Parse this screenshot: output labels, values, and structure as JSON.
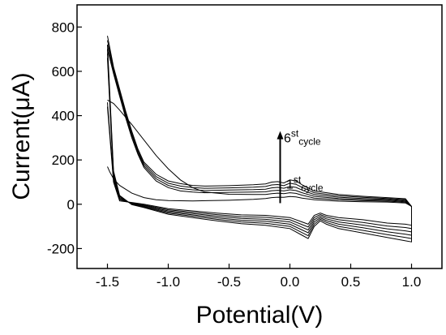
{
  "chart_data": {
    "type": "line",
    "xlabel": "Potential(V)",
    "ylabel": "Current(μA)",
    "xlim": [
      -1.75,
      1.25
    ],
    "ylim": [
      -290,
      900
    ],
    "xticks": [
      -1.5,
      -1.0,
      -0.5,
      0.0,
      0.5,
      1.0
    ],
    "xtick_labels": [
      "-1.5",
      "-1.0",
      "-0.5",
      "0.0",
      "0.5",
      "1.0"
    ],
    "yticks": [
      -200,
      0,
      200,
      400,
      600,
      800
    ],
    "ytick_labels": [
      "-200",
      "0",
      "200",
      "400",
      "600",
      "800"
    ],
    "grid": false,
    "legend": "none",
    "annotations": {
      "top": {
        "base": "6",
        "sup": "st",
        "sub": "cycle",
        "x": -0.05,
        "y": 280
      },
      "bottom": {
        "base": "1",
        "sup": "st",
        "sub": "cycle",
        "x": -0.03,
        "y": 70
      },
      "arrow": {
        "x": -0.08,
        "y_start": 5,
        "y_end": 330
      }
    },
    "series": [
      {
        "forward": [
          [
            -1.5,
            760
          ],
          [
            -1.45,
            620
          ],
          [
            -1.4,
            520
          ],
          [
            -1.35,
            420
          ],
          [
            -1.3,
            330
          ],
          [
            -1.25,
            250
          ],
          [
            -1.2,
            190
          ],
          [
            -1.1,
            135
          ],
          [
            -1.0,
            105
          ],
          [
            -0.9,
            93
          ],
          [
            -0.8,
            85
          ],
          [
            -0.7,
            82
          ],
          [
            -0.5,
            84
          ],
          [
            -0.3,
            88
          ],
          [
            -0.2,
            92
          ],
          [
            -0.15,
            100
          ],
          [
            -0.1,
            102
          ],
          [
            -0.05,
            96
          ],
          [
            0.0,
            110
          ],
          [
            0.05,
            105
          ],
          [
            0.1,
            88
          ],
          [
            0.2,
            60
          ],
          [
            0.4,
            44
          ],
          [
            0.6,
            36
          ],
          [
            0.8,
            30
          ],
          [
            0.95,
            25
          ],
          [
            1.0,
            -10
          ]
        ],
        "reverse": [
          [
            1.0,
            -170
          ],
          [
            0.95,
            -165
          ],
          [
            0.8,
            -150
          ],
          [
            0.6,
            -130
          ],
          [
            0.4,
            -110
          ],
          [
            0.3,
            -90
          ],
          [
            0.25,
            -75
          ],
          [
            0.2,
            -100
          ],
          [
            0.15,
            -155
          ],
          [
            0.1,
            -140
          ],
          [
            0.0,
            -110
          ],
          [
            -0.2,
            -95
          ],
          [
            -0.4,
            -88
          ],
          [
            -0.6,
            -75
          ],
          [
            -0.8,
            -60
          ],
          [
            -1.0,
            -45
          ],
          [
            -1.1,
            -30
          ],
          [
            -1.2,
            -15
          ],
          [
            -1.3,
            -2
          ],
          [
            -1.4,
            40
          ],
          [
            -1.45,
            150
          ],
          [
            -1.5,
            720
          ]
        ]
      },
      {
        "forward": [
          [
            -1.5,
            740
          ],
          [
            -1.45,
            610
          ],
          [
            -1.4,
            510
          ],
          [
            -1.35,
            410
          ],
          [
            -1.3,
            320
          ],
          [
            -1.25,
            242
          ],
          [
            -1.2,
            182
          ],
          [
            -1.1,
            125
          ],
          [
            -1.0,
            95
          ],
          [
            -0.9,
            82
          ],
          [
            -0.8,
            75
          ],
          [
            -0.7,
            72
          ],
          [
            -0.5,
            74
          ],
          [
            -0.3,
            77
          ],
          [
            -0.2,
            80
          ],
          [
            -0.15,
            87
          ],
          [
            -0.1,
            89
          ],
          [
            -0.05,
            84
          ],
          [
            0.0,
            95
          ],
          [
            0.05,
            90
          ],
          [
            0.1,
            76
          ],
          [
            0.2,
            52
          ],
          [
            0.4,
            38
          ],
          [
            0.6,
            31
          ],
          [
            0.8,
            26
          ],
          [
            0.95,
            21
          ],
          [
            1.0,
            -10
          ]
        ],
        "reverse": [
          [
            1.0,
            -155
          ],
          [
            0.95,
            -150
          ],
          [
            0.8,
            -137
          ],
          [
            0.6,
            -118
          ],
          [
            0.4,
            -100
          ],
          [
            0.3,
            -82
          ],
          [
            0.25,
            -68
          ],
          [
            0.2,
            -90
          ],
          [
            0.15,
            -142
          ],
          [
            0.1,
            -128
          ],
          [
            0.0,
            -100
          ],
          [
            -0.2,
            -86
          ],
          [
            -0.4,
            -80
          ],
          [
            -0.6,
            -68
          ],
          [
            -0.8,
            -54
          ],
          [
            -1.0,
            -40
          ],
          [
            -1.1,
            -26
          ],
          [
            -1.2,
            -12
          ],
          [
            -1.3,
            0
          ],
          [
            -1.4,
            35
          ],
          [
            -1.45,
            140
          ],
          [
            -1.5,
            700
          ]
        ]
      },
      {
        "forward": [
          [
            -1.5,
            720
          ],
          [
            -1.45,
            600
          ],
          [
            -1.4,
            498
          ],
          [
            -1.35,
            400
          ],
          [
            -1.3,
            310
          ],
          [
            -1.25,
            234
          ],
          [
            -1.2,
            174
          ],
          [
            -1.1,
            115
          ],
          [
            -1.0,
            85
          ],
          [
            -0.9,
            71
          ],
          [
            -0.8,
            65
          ],
          [
            -0.7,
            62
          ],
          [
            -0.5,
            64
          ],
          [
            -0.3,
            66
          ],
          [
            -0.2,
            68
          ],
          [
            -0.15,
            74
          ],
          [
            -0.1,
            76
          ],
          [
            -0.05,
            72
          ],
          [
            0.0,
            80
          ],
          [
            0.05,
            76
          ],
          [
            0.1,
            64
          ],
          [
            0.2,
            44
          ],
          [
            0.4,
            32
          ],
          [
            0.6,
            26
          ],
          [
            0.8,
            22
          ],
          [
            0.95,
            17
          ],
          [
            1.0,
            -10
          ]
        ],
        "reverse": [
          [
            1.0,
            -140
          ],
          [
            0.95,
            -135
          ],
          [
            0.8,
            -124
          ],
          [
            0.6,
            -106
          ],
          [
            0.4,
            -90
          ],
          [
            0.3,
            -74
          ],
          [
            0.25,
            -61
          ],
          [
            0.2,
            -80
          ],
          [
            0.15,
            -129
          ],
          [
            0.1,
            -116
          ],
          [
            0.0,
            -90
          ],
          [
            -0.2,
            -77
          ],
          [
            -0.4,
            -72
          ],
          [
            -0.6,
            -61
          ],
          [
            -0.8,
            -48
          ],
          [
            -1.0,
            -35
          ],
          [
            -1.1,
            -22
          ],
          [
            -1.2,
            -9
          ],
          [
            -1.3,
            2
          ],
          [
            -1.4,
            30
          ],
          [
            -1.45,
            130
          ],
          [
            -1.5,
            680
          ]
        ]
      },
      {
        "forward": [
          [
            -1.5,
            700
          ],
          [
            -1.45,
            590
          ],
          [
            -1.4,
            488
          ],
          [
            -1.35,
            390
          ],
          [
            -1.3,
            300
          ],
          [
            -1.25,
            226
          ],
          [
            -1.2,
            166
          ],
          [
            -1.1,
            105
          ],
          [
            -1.0,
            75
          ],
          [
            -0.9,
            60
          ],
          [
            -0.8,
            55
          ],
          [
            -0.7,
            52
          ],
          [
            -0.5,
            54
          ],
          [
            -0.3,
            55
          ],
          [
            -0.2,
            56
          ],
          [
            -0.15,
            61
          ],
          [
            -0.1,
            63
          ],
          [
            -0.05,
            60
          ],
          [
            0.0,
            65
          ],
          [
            0.05,
            62
          ],
          [
            0.1,
            52
          ],
          [
            0.2,
            36
          ],
          [
            0.4,
            26
          ],
          [
            0.6,
            21
          ],
          [
            0.8,
            18
          ],
          [
            0.95,
            13
          ],
          [
            1.0,
            -10
          ]
        ],
        "reverse": [
          [
            1.0,
            -125
          ],
          [
            0.95,
            -120
          ],
          [
            0.8,
            -111
          ],
          [
            0.6,
            -94
          ],
          [
            0.4,
            -80
          ],
          [
            0.3,
            -66
          ],
          [
            0.25,
            -54
          ],
          [
            0.2,
            -70
          ],
          [
            0.15,
            -116
          ],
          [
            0.1,
            -104
          ],
          [
            0.0,
            -80
          ],
          [
            -0.2,
            -68
          ],
          [
            -0.4,
            -64
          ],
          [
            -0.6,
            -54
          ],
          [
            -0.8,
            -42
          ],
          [
            -1.0,
            -30
          ],
          [
            -1.1,
            -18
          ],
          [
            -1.2,
            -6
          ],
          [
            -1.3,
            4
          ],
          [
            -1.4,
            25
          ],
          [
            -1.45,
            120
          ],
          [
            -1.5,
            660
          ]
        ]
      },
      {
        "forward": [
          [
            -1.5,
            470
          ],
          [
            -1.45,
            455
          ],
          [
            -1.4,
            425
          ],
          [
            -1.3,
            360
          ],
          [
            -1.2,
            290
          ],
          [
            -1.1,
            220
          ],
          [
            -1.0,
            160
          ],
          [
            -0.9,
            110
          ],
          [
            -0.8,
            75
          ],
          [
            -0.7,
            55
          ],
          [
            -0.5,
            45
          ],
          [
            -0.3,
            44
          ],
          [
            -0.2,
            44
          ],
          [
            -0.15,
            48
          ],
          [
            -0.1,
            50
          ],
          [
            -0.05,
            48
          ],
          [
            0.0,
            52
          ],
          [
            0.05,
            49
          ],
          [
            0.1,
            41
          ],
          [
            0.2,
            28
          ],
          [
            0.4,
            20
          ],
          [
            0.6,
            16
          ],
          [
            0.8,
            14
          ],
          [
            0.95,
            9
          ],
          [
            1.0,
            -10
          ]
        ],
        "reverse": [
          [
            1.0,
            -110
          ],
          [
            0.95,
            -105
          ],
          [
            0.8,
            -98
          ],
          [
            0.6,
            -82
          ],
          [
            0.4,
            -70
          ],
          [
            0.3,
            -58
          ],
          [
            0.25,
            -47
          ],
          [
            0.2,
            -60
          ],
          [
            0.15,
            -103
          ],
          [
            0.1,
            -92
          ],
          [
            0.0,
            -70
          ],
          [
            -0.2,
            -59
          ],
          [
            -0.4,
            -56
          ],
          [
            -0.6,
            -47
          ],
          [
            -0.8,
            -36
          ],
          [
            -1.0,
            -25
          ],
          [
            -1.1,
            -14
          ],
          [
            -1.2,
            -3
          ],
          [
            -1.3,
            6
          ],
          [
            -1.4,
            20
          ],
          [
            -1.45,
            110
          ],
          [
            -1.5,
            460
          ]
        ]
      },
      {
        "forward": [
          [
            -1.5,
            170
          ],
          [
            -1.48,
            145
          ],
          [
            -1.45,
            115
          ],
          [
            -1.4,
            85
          ],
          [
            -1.3,
            50
          ],
          [
            -1.2,
            30
          ],
          [
            -1.1,
            20
          ],
          [
            -1.0,
            17
          ],
          [
            -0.8,
            15
          ],
          [
            -0.5,
            18
          ],
          [
            -0.3,
            22
          ],
          [
            -0.2,
            26
          ],
          [
            -0.15,
            30
          ],
          [
            -0.1,
            32
          ],
          [
            -0.05,
            31
          ],
          [
            0.0,
            35
          ],
          [
            0.05,
            33
          ],
          [
            0.1,
            28
          ],
          [
            0.2,
            20
          ],
          [
            0.4,
            14
          ],
          [
            0.6,
            11
          ],
          [
            0.8,
            10
          ],
          [
            0.95,
            6
          ],
          [
            1.0,
            -10
          ]
        ],
        "reverse": [
          [
            1.0,
            -95
          ],
          [
            0.95,
            -90
          ],
          [
            0.8,
            -85
          ],
          [
            0.6,
            -70
          ],
          [
            0.4,
            -60
          ],
          [
            0.3,
            -50
          ],
          [
            0.25,
            -40
          ],
          [
            0.2,
            -50
          ],
          [
            0.15,
            -90
          ],
          [
            0.1,
            -80
          ],
          [
            0.0,
            -60
          ],
          [
            -0.2,
            -50
          ],
          [
            -0.4,
            -48
          ],
          [
            -0.6,
            -40
          ],
          [
            -0.8,
            -30
          ],
          [
            -1.0,
            -20
          ],
          [
            -1.1,
            -10
          ],
          [
            -1.2,
            0
          ],
          [
            -1.3,
            8
          ],
          [
            -1.4,
            15
          ],
          [
            -1.45,
            100
          ],
          [
            -1.5,
            440
          ]
        ]
      }
    ]
  }
}
